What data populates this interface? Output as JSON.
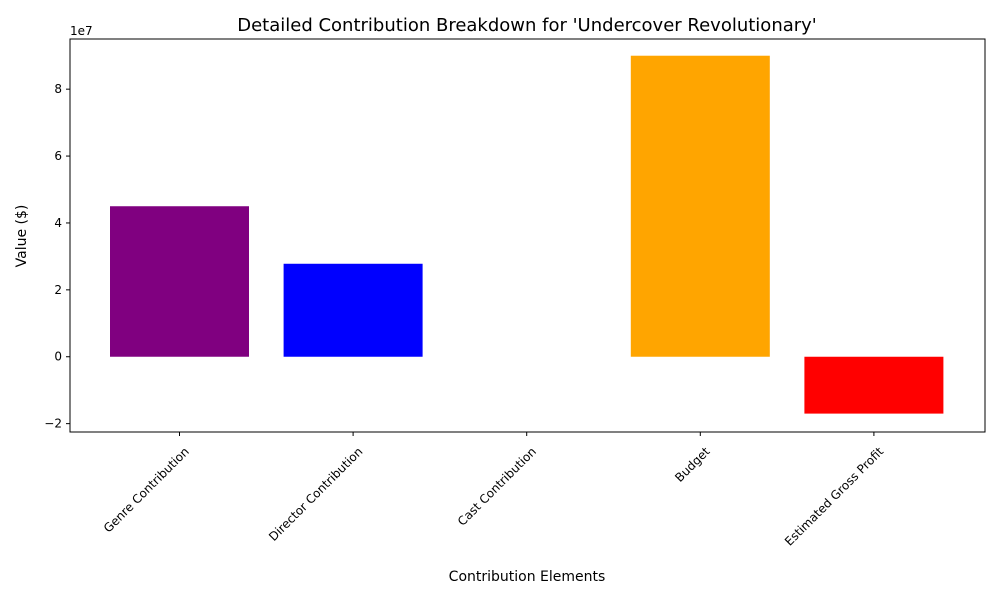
{
  "chart_data": {
    "type": "bar",
    "title": "Detailed Contribution Breakdown for 'Undercover Revolutionary'",
    "xlabel": "Contribution Elements",
    "ylabel": "Value ($)",
    "offset_label": "1e7",
    "categories": [
      "Genre Contribution",
      "Director Contribution",
      "Cast Contribution",
      "Budget",
      "Estimated Gross Profit"
    ],
    "values": [
      45000000,
      27800000,
      0,
      90000000,
      -17000000
    ],
    "colors": [
      "#800080",
      "#0000ff",
      "#008000",
      "#ffa500",
      "#ff0000"
    ],
    "ylim": [
      -22500000,
      95000000
    ],
    "yticks": [
      -20000000,
      0,
      20000000,
      40000000,
      60000000,
      80000000
    ],
    "ytick_labels": [
      "−2",
      "0",
      "2",
      "4",
      "6",
      "8"
    ],
    "grid": false,
    "legend": "none"
  }
}
